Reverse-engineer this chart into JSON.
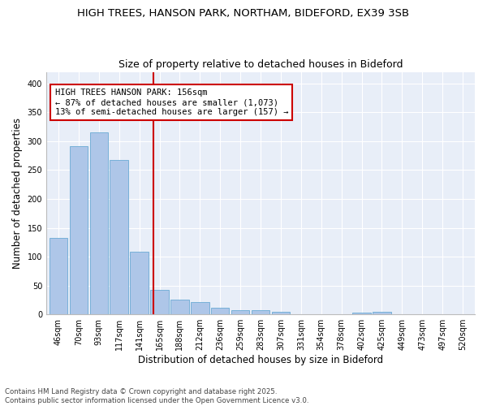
{
  "title1": "HIGH TREES, HANSON PARK, NORTHAM, BIDEFORD, EX39 3SB",
  "title2": "Size of property relative to detached houses in Bideford",
  "xlabel": "Distribution of detached houses by size in Bideford",
  "ylabel": "Number of detached properties",
  "categories": [
    "46sqm",
    "70sqm",
    "93sqm",
    "117sqm",
    "141sqm",
    "165sqm",
    "188sqm",
    "212sqm",
    "236sqm",
    "259sqm",
    "283sqm",
    "307sqm",
    "331sqm",
    "354sqm",
    "378sqm",
    "402sqm",
    "425sqm",
    "449sqm",
    "473sqm",
    "497sqm",
    "520sqm"
  ],
  "values": [
    132,
    292,
    315,
    268,
    108,
    43,
    25,
    22,
    11,
    8,
    7,
    4,
    0,
    0,
    0,
    3,
    4,
    0,
    0,
    0,
    0
  ],
  "bar_color": "#aec6e8",
  "bar_edge_color": "#6aaad4",
  "vline_color": "#cc0000",
  "annotation_text": "HIGH TREES HANSON PARK: 156sqm\n← 87% of detached houses are smaller (1,073)\n13% of semi-detached houses are larger (157) →",
  "annotation_box_color": "#ffffff",
  "annotation_box_edge": "#cc0000",
  "ylim": [
    0,
    420
  ],
  "yticks": [
    0,
    50,
    100,
    150,
    200,
    250,
    300,
    350,
    400
  ],
  "background_color": "#e8eef8",
  "fig_background": "#ffffff",
  "footnote": "Contains HM Land Registry data © Crown copyright and database right 2025.\nContains public sector information licensed under the Open Government Licence v3.0.",
  "title_fontsize": 9.5,
  "subtitle_fontsize": 9,
  "axis_label_fontsize": 8.5,
  "tick_fontsize": 7,
  "annot_fontsize": 7.5
}
